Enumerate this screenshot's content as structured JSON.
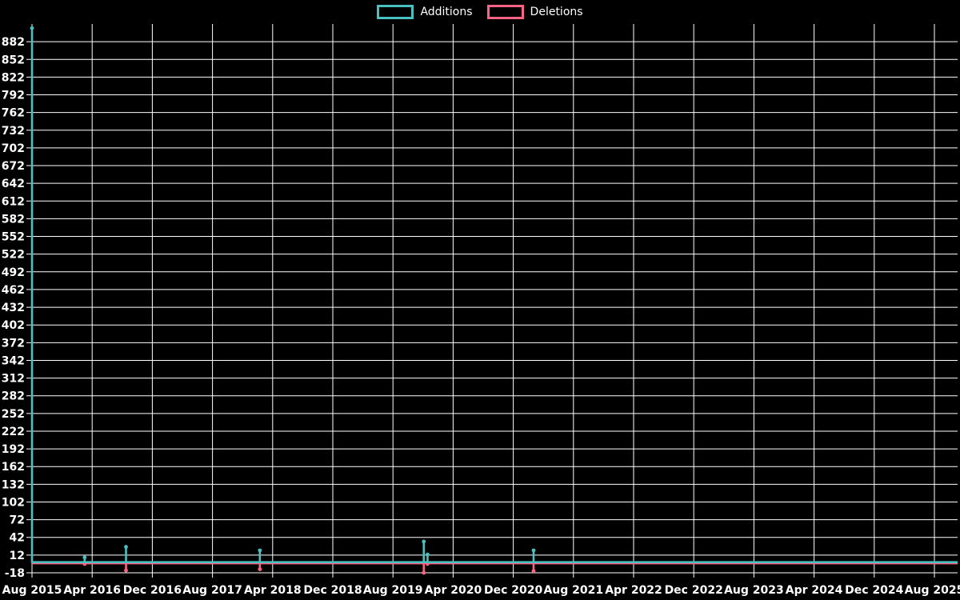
{
  "legend": {
    "additions_label": "Additions",
    "deletions_label": "Deletions"
  },
  "chart_data": {
    "type": "line",
    "title": "",
    "background": "#000000",
    "grid": {
      "color": "#ffffff",
      "horizontal": true,
      "vertical": true
    },
    "legend_position": "top-center",
    "x_axis": {
      "start": "Aug 2015",
      "end": "Aug 2025",
      "tick_interval_months": 8,
      "tick_labels": [
        "Aug 2015",
        "Apr 2016",
        "Dec 2016",
        "Aug 2017",
        "Apr 2018",
        "Dec 2018",
        "Aug 2019",
        "Apr 2020",
        "Dec 2020",
        "Aug 2021",
        "Apr 2022",
        "Dec 2022",
        "Aug 2023",
        "Apr 2024",
        "Dec 2024",
        "Aug 2025"
      ]
    },
    "y_axis": {
      "min": -18,
      "max": 912,
      "step": 30,
      "tick_labels": [
        882,
        852,
        822,
        792,
        762,
        732,
        702,
        672,
        642,
        612,
        582,
        552,
        522,
        492,
        462,
        432,
        402,
        372,
        342,
        312,
        282,
        252,
        222,
        192,
        162,
        132,
        102,
        72,
        42,
        12,
        -18
      ]
    },
    "legend": [
      {
        "label": "Additions",
        "color": "#4bc0c0"
      },
      {
        "label": "Deletions",
        "color": "#ff6384"
      }
    ],
    "series": [
      {
        "name": "Additions",
        "color": "#4bc0c0",
        "baseline": 0,
        "events": [
          {
            "date": "Aug 2015",
            "months_from_start": 0,
            "value": 905
          },
          {
            "date": "Mar 2016",
            "months_from_start": 7,
            "value": 8
          },
          {
            "date": "Sep 2016",
            "months_from_start": 12.5,
            "value": 26
          },
          {
            "date": "Feb 2018",
            "months_from_start": 30.3,
            "value": 20
          },
          {
            "date": "Dec 2019",
            "months_from_start": 52.1,
            "value": 35
          },
          {
            "date": "Jan 2020",
            "months_from_start": 52.6,
            "value": 13
          },
          {
            "date": "Feb 2021",
            "months_from_start": 66.7,
            "value": 20
          }
        ]
      },
      {
        "name": "Deletions",
        "color": "#ff6384",
        "baseline": 0,
        "events": [
          {
            "date": "Mar 2016",
            "months_from_start": 7,
            "value": -3
          },
          {
            "date": "Sep 2016",
            "months_from_start": 12.5,
            "value": -14
          },
          {
            "date": "Feb 2018",
            "months_from_start": 30.3,
            "value": -12
          },
          {
            "date": "Dec 2019",
            "months_from_start": 52.1,
            "value": -18
          },
          {
            "date": "Jan 2020",
            "months_from_start": 52.6,
            "value": -3
          },
          {
            "date": "Feb 2021",
            "months_from_start": 66.7,
            "value": -15
          }
        ]
      }
    ]
  }
}
